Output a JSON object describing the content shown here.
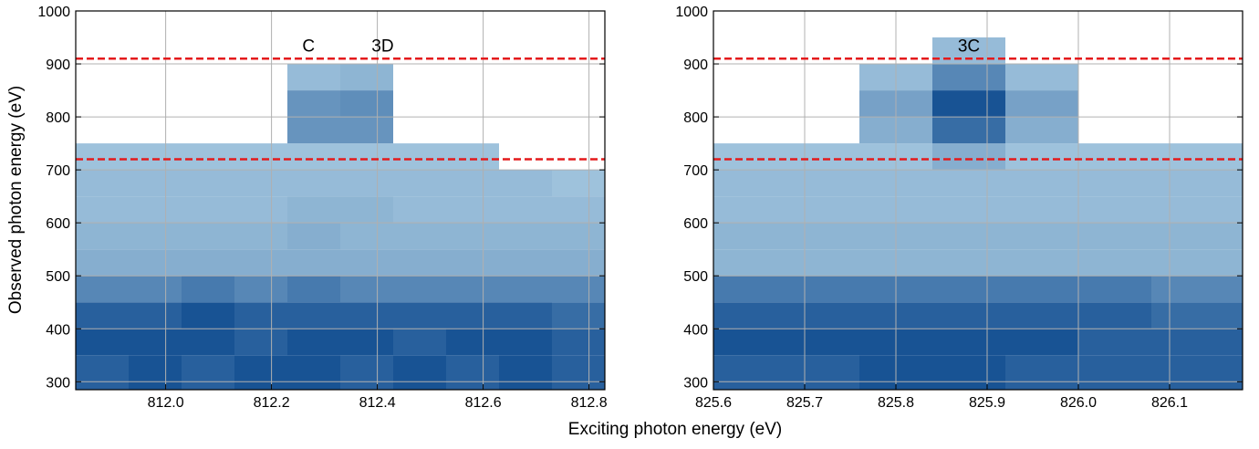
{
  "xlabel": "Exciting photon energy (eV)",
  "ylabel": "Observed photon energy (eV)",
  "chart_data": [
    {
      "type": "heatmap",
      "xlim": [
        811.83,
        812.83
      ],
      "ylim": [
        285,
        1000
      ],
      "xticks": [
        {
          "value": 812,
          "label": "812.0"
        },
        812.2,
        812.4,
        812.6,
        812.8
      ],
      "yticks": [
        300,
        400,
        500,
        600,
        700,
        800,
        900,
        1000
      ],
      "grid": true,
      "cmap": [
        "#a6c8e0",
        "#08468c"
      ],
      "clim": [
        0,
        10
      ],
      "x_bins": [
        811.83,
        811.93,
        812.03,
        812.13,
        812.23,
        812.33,
        812.43,
        812.53,
        812.63,
        812.73,
        812.83
      ],
      "y_bins": [
        285,
        350,
        400,
        450,
        500,
        550,
        600,
        650,
        700,
        750,
        800,
        850,
        900,
        950,
        1000
      ],
      "z": [
        [
          8,
          9,
          8,
          9,
          9,
          8,
          9,
          8,
          9,
          8
        ],
        [
          9,
          9,
          9,
          8,
          9,
          9,
          8,
          9,
          9,
          8
        ],
        [
          8,
          8,
          9,
          8,
          8,
          8,
          8,
          8,
          8,
          7
        ],
        [
          5,
          5,
          6,
          5,
          6,
          5,
          5,
          5,
          5,
          5
        ],
        [
          2,
          2,
          2,
          2,
          2,
          2,
          2,
          2,
          2,
          2
        ],
        [
          1.5,
          1.5,
          1.5,
          1.5,
          2,
          1.5,
          1.5,
          1.5,
          1.5,
          1.5
        ],
        [
          1,
          1,
          1,
          1,
          1.5,
          1.5,
          1,
          1,
          1,
          1
        ],
        [
          1,
          1,
          1,
          1,
          1,
          1,
          1,
          1,
          1,
          0.5
        ],
        [
          0.5,
          0.5,
          0.5,
          0.5,
          0.5,
          0.5,
          0.5,
          0.5,
          0,
          0
        ],
        [
          0,
          0,
          0,
          0,
          4,
          4,
          0,
          0,
          0,
          0
        ],
        [
          0,
          0,
          0,
          0,
          4,
          4.5,
          0,
          0,
          0,
          0
        ],
        [
          0,
          0,
          0,
          0,
          1,
          1.5,
          0,
          0,
          0,
          0
        ],
        [
          0,
          0,
          0,
          0,
          0,
          0,
          0,
          0,
          0,
          0
        ],
        [
          0,
          0,
          0,
          0,
          0,
          0,
          0,
          0,
          0,
          0
        ]
      ],
      "hlines": [
        720,
        910
      ],
      "hline_color": "#e41a1c",
      "annotations": [
        {
          "text": "C",
          "x": 812.27,
          "y": 935
        },
        {
          "text": "3D",
          "x": 812.41,
          "y": 935
        }
      ]
    },
    {
      "type": "heatmap",
      "xlim": [
        825.6,
        826.18
      ],
      "ylim": [
        285,
        1000
      ],
      "xticks": [
        825.6,
        825.7,
        825.8,
        825.9,
        {
          "value": 826,
          "label": "826.0"
        },
        826.1
      ],
      "yticks": [
        300,
        400,
        500,
        600,
        700,
        800,
        900,
        1000
      ],
      "grid": true,
      "cmap": [
        "#a6c8e0",
        "#08468c"
      ],
      "clim": [
        0,
        10
      ],
      "x_bins": [
        825.6,
        825.68,
        825.76,
        825.84,
        825.92,
        826.0,
        826.08,
        826.18
      ],
      "y_bins": [
        285,
        350,
        400,
        450,
        500,
        550,
        600,
        650,
        700,
        750,
        800,
        850,
        900,
        950,
        1000
      ],
      "z": [
        [
          8,
          8,
          9,
          9,
          8,
          8,
          8
        ],
        [
          9,
          9,
          9,
          9,
          9,
          8,
          8
        ],
        [
          8,
          8,
          8,
          8,
          8,
          8,
          7
        ],
        [
          6,
          6,
          6,
          6,
          6,
          6,
          5
        ],
        [
          1.5,
          1.5,
          1.5,
          1.5,
          1.5,
          1.5,
          1.5
        ],
        [
          1.5,
          1.5,
          1.5,
          1.5,
          1.5,
          1.5,
          1.5
        ],
        [
          1,
          1,
          1,
          1,
          1,
          1,
          1
        ],
        [
          1,
          1,
          1,
          1,
          1,
          1,
          1
        ],
        [
          0.5,
          0.5,
          0.5,
          2,
          0.5,
          0.5,
          0.5
        ],
        [
          0,
          0,
          2,
          7,
          2,
          0,
          0
        ],
        [
          0,
          0,
          3,
          9,
          3,
          0,
          0
        ],
        [
          0,
          0,
          1,
          5,
          1,
          0,
          0
        ],
        [
          0,
          0,
          0,
          1,
          0,
          0,
          0
        ],
        [
          0,
          0,
          0,
          0,
          0,
          0,
          0
        ]
      ],
      "hlines": [
        720,
        910
      ],
      "hline_color": "#e41a1c",
      "annotations": [
        {
          "text": "3C",
          "x": 825.88,
          "y": 935
        }
      ]
    }
  ]
}
